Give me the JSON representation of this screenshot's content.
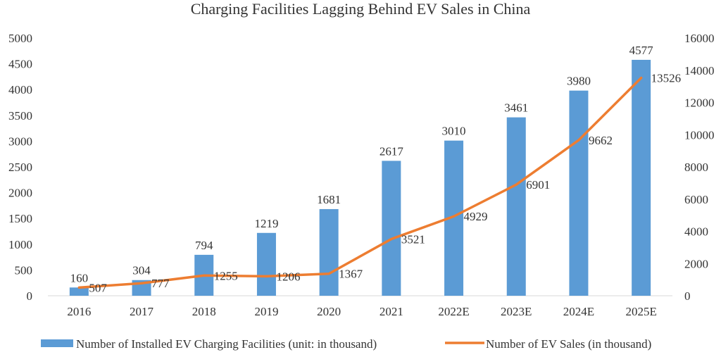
{
  "chart_data": {
    "type": "bar",
    "title": "Charging Facilities Lagging Behind EV Sales in China",
    "categories": [
      "2016",
      "2017",
      "2018",
      "2019",
      "2020",
      "2021",
      "2022E",
      "2023E",
      "2024E",
      "2025E"
    ],
    "series": [
      {
        "name": "Number of Installed EV Charging Facilities (unit: in thousand)",
        "type": "bar",
        "axis": "left",
        "color": "#5b9bd5",
        "values": [
          160,
          304,
          794,
          1219,
          1681,
          2617,
          3010,
          3461,
          3980,
          4577
        ]
      },
      {
        "name": "Number of EV Sales (in thousand)",
        "type": "line",
        "axis": "right",
        "color": "#ed7d31",
        "values": [
          507,
          777,
          1255,
          1206,
          1367,
          3521,
          4929,
          6901,
          9662,
          13526
        ]
      }
    ],
    "y_left": {
      "min": 0,
      "max": 5000,
      "ticks": [
        0,
        500,
        1000,
        1500,
        2000,
        2500,
        3000,
        3500,
        4000,
        4500,
        5000
      ]
    },
    "y_right": {
      "min": 0,
      "max": 16000,
      "ticks": [
        0,
        2000,
        4000,
        6000,
        8000,
        10000,
        12000,
        14000,
        16000
      ]
    },
    "grid": false,
    "legend_position": "bottom"
  }
}
